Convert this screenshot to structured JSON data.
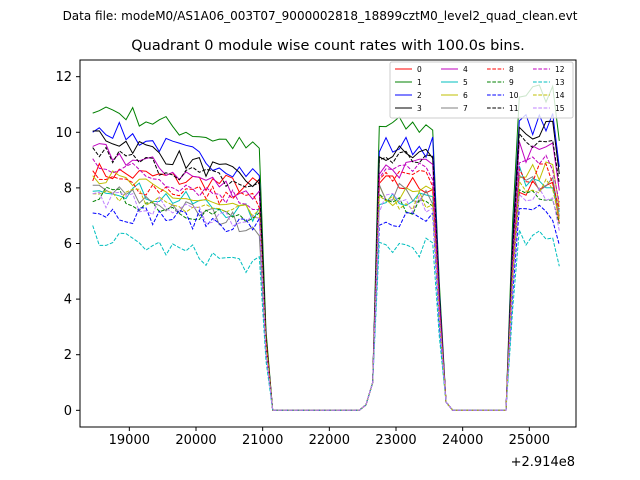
{
  "chart_data": {
    "type": "line",
    "suptitle": "Data file: modeM0/AS1A06_003T07_9000002818_18899cztM0_level2_quad_clean.evt",
    "title": "Quadrant 0 module wise count rates with 100.0s bins.",
    "xlabel": "",
    "ylabel": "",
    "x_offset_label": "+2.914e8",
    "x_offset": 291400000,
    "xlim": [
      18260,
      25700
    ],
    "ylim": [
      -0.6,
      12.6
    ],
    "x_ticks": [
      19000,
      20000,
      21000,
      22000,
      23000,
      24000,
      25000
    ],
    "x_tick_labels": [
      "19000",
      "20000",
      "21000",
      "22000",
      "23000",
      "24000",
      "25000"
    ],
    "y_ticks": [
      0,
      2,
      4,
      6,
      8,
      10,
      12
    ],
    "y_tick_labels": [
      "0",
      "2",
      "4",
      "6",
      "8",
      "10",
      "12"
    ],
    "legend_location": "upper right",
    "segments": [
      {
        "start": 18450,
        "end": 21150
      },
      {
        "start": 22550,
        "end": 23800
      },
      {
        "start": 24650,
        "end": 25450
      }
    ],
    "series": [
      {
        "name": "0",
        "color": "#ff0000",
        "dash": "solid",
        "levels": [
          8.6,
          8.0,
          8.1,
          7.9
        ]
      },
      {
        "name": "1",
        "color": "#008000",
        "dash": "solid",
        "levels": [
          11.0,
          9.2,
          10.2,
          11.4
        ]
      },
      {
        "name": "2",
        "color": "#0000ff",
        "dash": "solid",
        "levels": [
          10.3,
          8.3,
          9.5,
          10.3
        ]
      },
      {
        "name": "3",
        "color": "#000000",
        "dash": "solid",
        "levels": [
          10.0,
          8.0,
          9.2,
          10.0
        ]
      },
      {
        "name": "4",
        "color": "#bf00bf",
        "dash": "solid",
        "levels": [
          9.4,
          7.6,
          8.7,
          9.3
        ]
      },
      {
        "name": "5",
        "color": "#00bfbf",
        "dash": "solid",
        "levels": [
          8.2,
          6.9,
          7.7,
          8.4
        ]
      },
      {
        "name": "6",
        "color": "#bfbf00",
        "dash": "solid",
        "levels": [
          8.5,
          6.8,
          7.7,
          8.6
        ]
      },
      {
        "name": "7",
        "color": "#808080",
        "dash": "solid",
        "levels": [
          8.0,
          6.5,
          7.8,
          8.2
        ]
      },
      {
        "name": "8",
        "color": "#ff0000",
        "dash": "dashed",
        "levels": [
          8.3,
          7.5,
          8.3,
          8.5
        ]
      },
      {
        "name": "9",
        "color": "#008000",
        "dash": "dashed",
        "levels": [
          7.8,
          6.7,
          7.4,
          7.9
        ]
      },
      {
        "name": "10",
        "color": "#0000ff",
        "dash": "dashed",
        "levels": [
          7.2,
          6.6,
          6.8,
          7.0
        ]
      },
      {
        "name": "11",
        "color": "#000000",
        "dash": "dashed",
        "levels": [
          9.3,
          7.9,
          9.1,
          9.6
        ]
      },
      {
        "name": "12",
        "color": "#bf00bf",
        "dash": "dashed",
        "levels": [
          9.0,
          7.3,
          8.6,
          8.8
        ]
      },
      {
        "name": "13",
        "color": "#00bfbf",
        "dash": "dashed",
        "levels": [
          6.3,
          5.1,
          5.9,
          6.1
        ]
      },
      {
        "name": "14",
        "color": "#bfbf00",
        "dash": "dashed",
        "levels": [
          8.0,
          6.9,
          7.6,
          8.1
        ]
      },
      {
        "name": "15",
        "color": "#bf80ff",
        "dash": "dashed",
        "levels": [
          7.7,
          6.7,
          7.4,
          7.6
        ]
      }
    ]
  }
}
